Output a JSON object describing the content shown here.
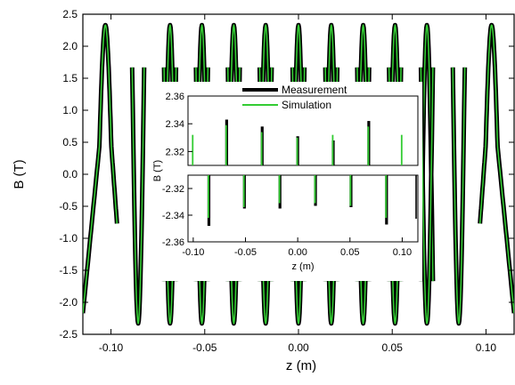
{
  "chart_data": {
    "type": "line",
    "main": {
      "xlabel": "z (m)",
      "ylabel": "B (T)",
      "xlim": [
        -0.115,
        0.115
      ],
      "ylim": [
        -2.5,
        2.5
      ],
      "x_ticks": [
        "-0.10",
        "-0.05",
        "0.00",
        "0.05",
        "0.10"
      ],
      "x_tick_values": [
        -0.1,
        -0.05,
        0.0,
        0.05,
        0.1
      ],
      "y_ticks": [
        "2.5",
        "2.0",
        "1.5",
        "1.0",
        "0.5",
        "0.0",
        "-0.5",
        "-1.0",
        "-1.5",
        "-2.0",
        "-2.5"
      ],
      "y_tick_values": [
        2.5,
        2.0,
        1.5,
        1.0,
        0.5,
        0.0,
        -0.5,
        -1.0,
        -1.5,
        -2.0,
        -2.5
      ],
      "end_poles": [
        {
          "x": -0.103,
          "peak": 2.33
        },
        {
          "x": 0.103,
          "peak": 2.33
        }
      ],
      "positive_peaks_x": [
        -0.0685,
        -0.0515,
        -0.0345,
        -0.0175,
        0.0,
        0.0175,
        0.0345,
        0.0515,
        0.0685
      ],
      "positive_peaks_value": 2.33,
      "negative_peaks_x": [
        -0.0855,
        -0.0685,
        -0.0515,
        -0.0345,
        -0.0175,
        0.0,
        0.0175,
        0.0345,
        0.0515,
        0.0685,
        0.0855
      ],
      "negative_peaks_value": -2.33,
      "series": [
        {
          "name": "Measurement",
          "color": "#000000"
        },
        {
          "name": "Simulation",
          "color": "#33cc33"
        }
      ]
    },
    "inset": {
      "xlabel": "z (m)",
      "ylabel": "B (T)",
      "xlim": [
        -0.105,
        0.115
      ],
      "top_ylim": [
        2.31,
        2.36
      ],
      "bottom_ylim": [
        -2.36,
        -2.31
      ],
      "x_ticks": [
        "-0.10",
        "-0.05",
        "0.00",
        "0.05",
        "0.10"
      ],
      "x_tick_values": [
        -0.1,
        -0.05,
        0.0,
        0.05,
        0.1
      ],
      "top_y_ticks": [
        "2.36",
        "2.34",
        "2.32"
      ],
      "top_y_tick_values": [
        2.36,
        2.34,
        2.32
      ],
      "bottom_y_ticks": [
        "-2.32",
        "-2.34",
        "-2.36"
      ],
      "bottom_y_tick_values": [
        -2.32,
        -2.34,
        -2.36
      ],
      "legend": [
        "Measurement",
        "Simulation"
      ],
      "series": [
        {
          "name": "Measurement",
          "color": "#000000",
          "positive_peaks": [
            {
              "x": -0.068,
              "y": 2.343
            },
            {
              "x": -0.034,
              "y": 2.338
            },
            {
              "x": 0.0,
              "y": 2.331
            },
            {
              "x": 0.034,
              "y": 2.328
            },
            {
              "x": 0.068,
              "y": 2.342
            }
          ],
          "negative_peaks": [
            {
              "x": -0.085,
              "y": -2.348
            },
            {
              "x": -0.051,
              "y": -2.335
            },
            {
              "x": -0.017,
              "y": -2.335
            },
            {
              "x": 0.017,
              "y": -2.333
            },
            {
              "x": 0.051,
              "y": -2.334
            },
            {
              "x": 0.085,
              "y": -2.347
            }
          ]
        },
        {
          "name": "Simulation",
          "color": "#33cc33",
          "positive_peaks": [
            {
              "x": -0.1,
              "y": 2.332
            },
            {
              "x": -0.068,
              "y": 2.339
            },
            {
              "x": -0.034,
              "y": 2.334
            },
            {
              "x": 0.0,
              "y": 2.33
            },
            {
              "x": 0.034,
              "y": 2.332
            },
            {
              "x": 0.068,
              "y": 2.338
            },
            {
              "x": 0.1,
              "y": 2.332
            }
          ],
          "negative_peaks": [
            {
              "x": -0.085,
              "y": -2.342
            },
            {
              "x": -0.051,
              "y": -2.334
            },
            {
              "x": -0.017,
              "y": -2.331
            },
            {
              "x": 0.017,
              "y": -2.331
            },
            {
              "x": 0.051,
              "y": -2.333
            },
            {
              "x": 0.085,
              "y": -2.342
            }
          ]
        }
      ]
    }
  }
}
